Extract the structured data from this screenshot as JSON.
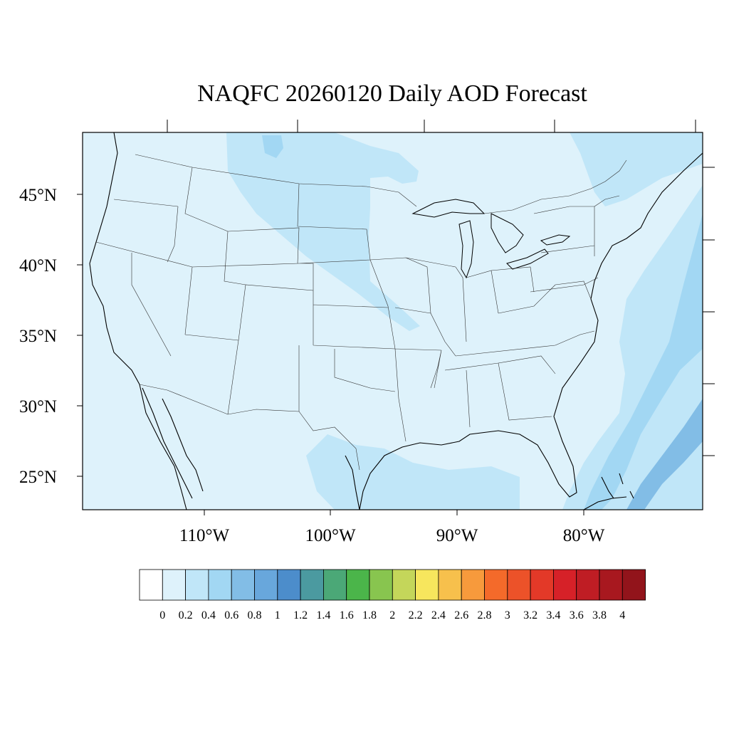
{
  "title": "NAQFC 20260120 Daily AOD Forecast",
  "map": {
    "background_color": "#def2fb",
    "lat_labels": [
      "45°N",
      "40°N",
      "35°N",
      "30°N",
      "25°N"
    ],
    "lon_labels": [
      "110°W",
      "100°W",
      "90°W",
      "80°W"
    ]
  },
  "colorbar": {
    "colors": [
      "#ffffff",
      "#def2fb",
      "#c0e6f8",
      "#a2d7f3",
      "#82bde6",
      "#68a7dc",
      "#4c8dcb",
      "#4b9aa0",
      "#4ba877",
      "#4bb54a",
      "#88c54f",
      "#c4d65a",
      "#f7e65d",
      "#f7c04c",
      "#f79a3c",
      "#f46a2a",
      "#ec5229",
      "#e33928",
      "#d62128",
      "#bf1d24",
      "#a8181f",
      "#92141b"
    ],
    "labels": [
      "0",
      "0.2",
      "0.4",
      "0.6",
      "0.8",
      "1",
      "1.2",
      "1.4",
      "1.6",
      "1.8",
      "2",
      "2.2",
      "2.4",
      "2.6",
      "2.8",
      "3",
      "3.2",
      "3.4",
      "3.6",
      "3.8",
      "4"
    ]
  }
}
